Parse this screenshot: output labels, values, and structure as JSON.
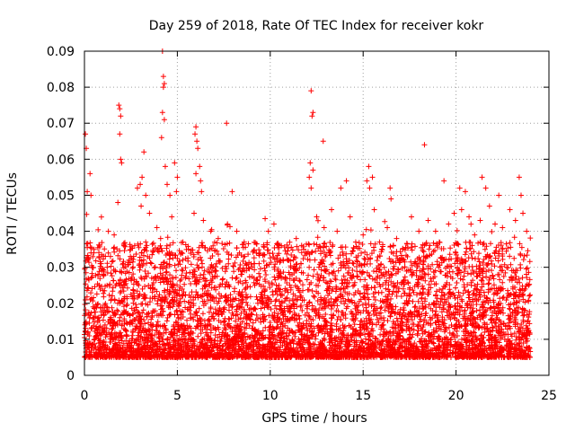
{
  "chart_data": {
    "type": "scatter",
    "title": "Day 259 of 2018, Rate Of TEC Index for receiver kokr",
    "xlabel": "GPS time / hours",
    "ylabel": "ROTI / TECUs",
    "xlim": [
      0,
      25
    ],
    "ylim": [
      0,
      0.09
    ],
    "xticks": [
      0,
      5,
      10,
      15,
      20,
      25
    ],
    "xtick_labels": [
      "0",
      "5",
      "10",
      "15",
      "20",
      "25"
    ],
    "yticks": [
      0,
      0.01,
      0.02,
      0.03,
      0.04,
      0.05,
      0.06,
      0.07,
      0.08,
      0.09
    ],
    "ytick_labels": [
      "0",
      "0.01",
      "0.02",
      "0.03",
      "0.04",
      "0.05",
      "0.06",
      "0.07",
      "0.08",
      "0.09"
    ],
    "grid": true,
    "marker": "+",
    "color": "#ff0000",
    "series": [
      {
        "name": "ROTI",
        "points": [
          [
            0.05,
            0.067
          ],
          [
            0.1,
            0.063
          ],
          [
            0.15,
            0.051
          ],
          [
            0.3,
            0.056
          ],
          [
            0.35,
            0.05
          ],
          [
            1.85,
            0.075
          ],
          [
            1.9,
            0.074
          ],
          [
            1.95,
            0.072
          ],
          [
            1.9,
            0.067
          ],
          [
            1.95,
            0.06
          ],
          [
            2.0,
            0.059
          ],
          [
            1.8,
            0.048
          ],
          [
            3.2,
            0.062
          ],
          [
            3.1,
            0.055
          ],
          [
            3.0,
            0.053
          ],
          [
            2.85,
            0.052
          ],
          [
            3.3,
            0.05
          ],
          [
            3.05,
            0.047
          ],
          [
            4.2,
            0.09
          ],
          [
            4.25,
            0.083
          ],
          [
            4.3,
            0.081
          ],
          [
            4.25,
            0.08
          ],
          [
            4.2,
            0.073
          ],
          [
            4.3,
            0.071
          ],
          [
            4.15,
            0.066
          ],
          [
            4.35,
            0.058
          ],
          [
            4.45,
            0.053
          ],
          [
            4.6,
            0.05
          ],
          [
            4.85,
            0.059
          ],
          [
            5.0,
            0.055
          ],
          [
            4.95,
            0.051
          ],
          [
            6.0,
            0.069
          ],
          [
            5.95,
            0.067
          ],
          [
            6.05,
            0.065
          ],
          [
            6.1,
            0.063
          ],
          [
            6.2,
            0.058
          ],
          [
            6.25,
            0.054
          ],
          [
            6.3,
            0.051
          ],
          [
            6.0,
            0.056
          ],
          [
            7.65,
            0.07
          ],
          [
            7.95,
            0.051
          ],
          [
            12.2,
            0.079
          ],
          [
            12.3,
            0.073
          ],
          [
            12.25,
            0.072
          ],
          [
            12.15,
            0.059
          ],
          [
            12.3,
            0.057
          ],
          [
            12.1,
            0.055
          ],
          [
            12.2,
            0.052
          ],
          [
            12.85,
            0.065
          ],
          [
            13.8,
            0.052
          ],
          [
            14.1,
            0.054
          ],
          [
            15.3,
            0.058
          ],
          [
            15.5,
            0.055
          ],
          [
            15.2,
            0.054
          ],
          [
            15.35,
            0.052
          ],
          [
            16.45,
            0.052
          ],
          [
            16.5,
            0.049
          ],
          [
            18.3,
            0.064
          ],
          [
            19.35,
            0.054
          ],
          [
            20.2,
            0.052
          ],
          [
            20.5,
            0.051
          ],
          [
            21.4,
            0.055
          ],
          [
            21.6,
            0.052
          ],
          [
            22.3,
            0.05
          ],
          [
            23.4,
            0.055
          ],
          [
            23.5,
            0.05
          ],
          [
            0.5,
            0.034
          ],
          [
            0.9,
            0.031
          ],
          [
            1.4,
            0.033
          ],
          [
            1.6,
            0.039
          ],
          [
            2.4,
            0.032
          ],
          [
            2.7,
            0.036
          ],
          [
            3.5,
            0.045
          ],
          [
            3.9,
            0.041
          ],
          [
            4.1,
            0.038
          ],
          [
            4.7,
            0.044
          ],
          [
            5.3,
            0.037
          ],
          [
            5.6,
            0.035
          ],
          [
            5.9,
            0.045
          ],
          [
            6.4,
            0.043
          ],
          [
            6.8,
            0.04
          ],
          [
            7.2,
            0.038
          ],
          [
            7.7,
            0.042
          ],
          [
            8.2,
            0.04
          ],
          [
            8.6,
            0.037
          ],
          [
            9.4,
            0.031
          ],
          [
            9.9,
            0.04
          ],
          [
            10.2,
            0.042
          ],
          [
            10.6,
            0.036
          ],
          [
            11.0,
            0.032
          ],
          [
            11.4,
            0.038
          ],
          [
            11.8,
            0.035
          ],
          [
            12.5,
            0.044
          ],
          [
            12.9,
            0.041
          ],
          [
            13.3,
            0.046
          ],
          [
            13.6,
            0.04
          ],
          [
            14.3,
            0.044
          ],
          [
            14.6,
            0.037
          ],
          [
            15.0,
            0.039
          ],
          [
            15.6,
            0.046
          ],
          [
            16.0,
            0.035
          ],
          [
            16.3,
            0.041
          ],
          [
            16.8,
            0.038
          ],
          [
            17.2,
            0.032
          ],
          [
            17.6,
            0.044
          ],
          [
            18.0,
            0.04
          ],
          [
            18.5,
            0.043
          ],
          [
            18.9,
            0.04
          ],
          [
            19.1,
            0.037
          ],
          [
            19.6,
            0.042
          ],
          [
            19.9,
            0.045
          ],
          [
            20.3,
            0.046
          ],
          [
            20.7,
            0.044
          ],
          [
            21.0,
            0.039
          ],
          [
            21.3,
            0.043
          ],
          [
            21.8,
            0.047
          ],
          [
            22.1,
            0.042
          ],
          [
            22.5,
            0.041
          ],
          [
            22.9,
            0.046
          ],
          [
            23.2,
            0.043
          ],
          [
            23.6,
            0.045
          ],
          [
            23.8,
            0.04
          ]
        ]
      }
    ]
  }
}
